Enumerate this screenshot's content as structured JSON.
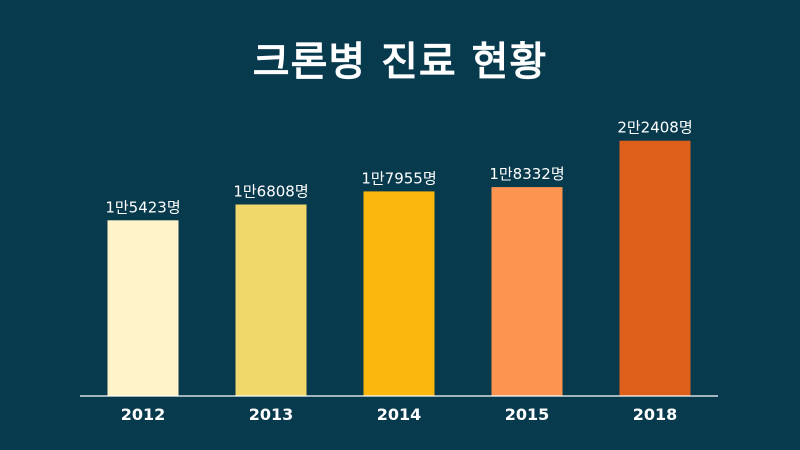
{
  "chart_data": {
    "type": "bar",
    "title": "크론병 진료 현황",
    "categories": [
      "2012",
      "2013",
      "2014",
      "2015",
      "2018"
    ],
    "values": [
      15423,
      16808,
      17955,
      18332,
      22408
    ],
    "value_labels": [
      "1만5423명",
      "1만6808명",
      "1만7955명",
      "1만8332명",
      "2만2408명"
    ],
    "colors": [
      "#fff3c9",
      "#f0d86a",
      "#fcb70c",
      "#fd9550",
      "#dd5f19"
    ],
    "ylim": [
      0,
      28000
    ],
    "xlabel": "",
    "ylabel": "",
    "grid": false,
    "legend": "none"
  }
}
